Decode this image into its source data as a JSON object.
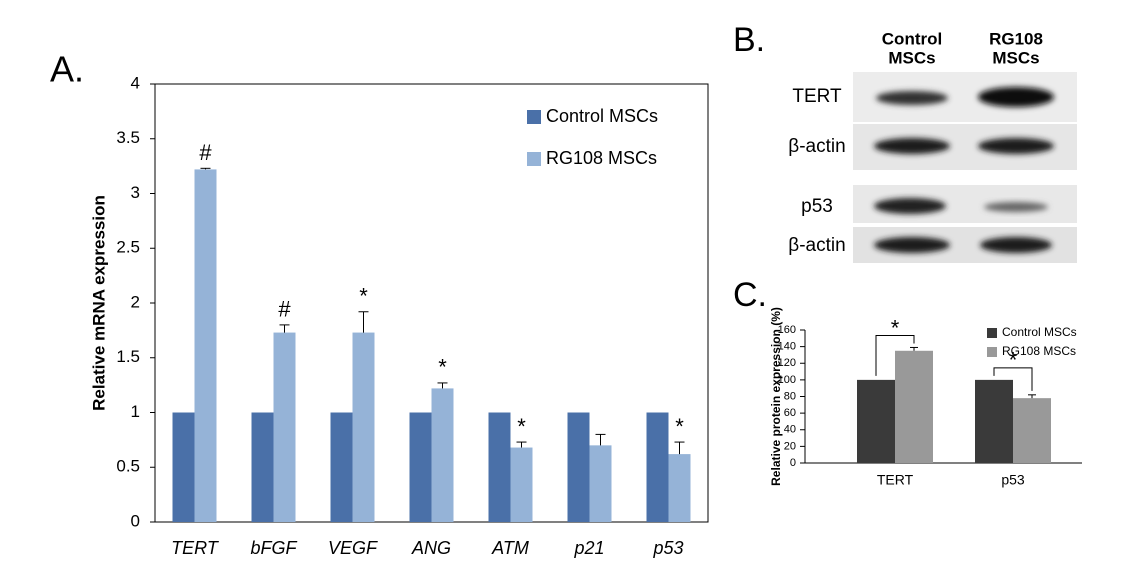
{
  "chart_data": [
    {
      "type": "bar",
      "panel": "A.",
      "ylabel": "Relative mRNA expression",
      "categories": [
        "TERT",
        "bFGF",
        "VEGF",
        "ANG",
        "ATM",
        "p21",
        "p53"
      ],
      "series": [
        {
          "name": "Control MSCs",
          "color": "#4a70a8",
          "values": [
            1,
            1,
            1,
            1,
            1,
            1,
            1
          ]
        },
        {
          "name": "RG108 MSCs",
          "color": "#95b3d7",
          "values": [
            3.22,
            1.73,
            1.73,
            1.22,
            0.68,
            0.7,
            0.62
          ],
          "errors": [
            0.01,
            0.07,
            0.19,
            0.05,
            0.05,
            0.1,
            0.11
          ],
          "markers": [
            "#",
            "#",
            "*",
            "*",
            "*",
            null,
            "*"
          ]
        }
      ],
      "ylim": [
        0,
        4
      ],
      "yticks": [
        0,
        0.5,
        1,
        1.5,
        2,
        2.5,
        3,
        3.5,
        4
      ],
      "legend": "upper right"
    },
    {
      "type": "bar",
      "panel": "C.",
      "ylabel": "Relative protein expression (%)",
      "categories": [
        "TERT",
        "p53"
      ],
      "series": [
        {
          "name": "Control MSCs",
          "color": "#3a3a3a",
          "values": [
            100,
            100
          ]
        },
        {
          "name": "RG108 MSCs",
          "color": "#999999",
          "values": [
            135,
            78
          ],
          "errors": [
            4,
            4
          ],
          "markers": [
            "*",
            "*"
          ]
        }
      ],
      "ylim": [
        0,
        160
      ],
      "yticks": [
        0,
        20,
        40,
        60,
        80,
        100,
        120,
        140,
        160
      ],
      "legend": "upper right"
    }
  ],
  "blot": {
    "panel": "B.",
    "columns": [
      [
        "Control",
        "MSCs"
      ],
      [
        "RG108",
        "MSCs"
      ]
    ],
    "rows": [
      "TERT",
      "β-actin",
      "p53",
      "β-actin"
    ]
  }
}
